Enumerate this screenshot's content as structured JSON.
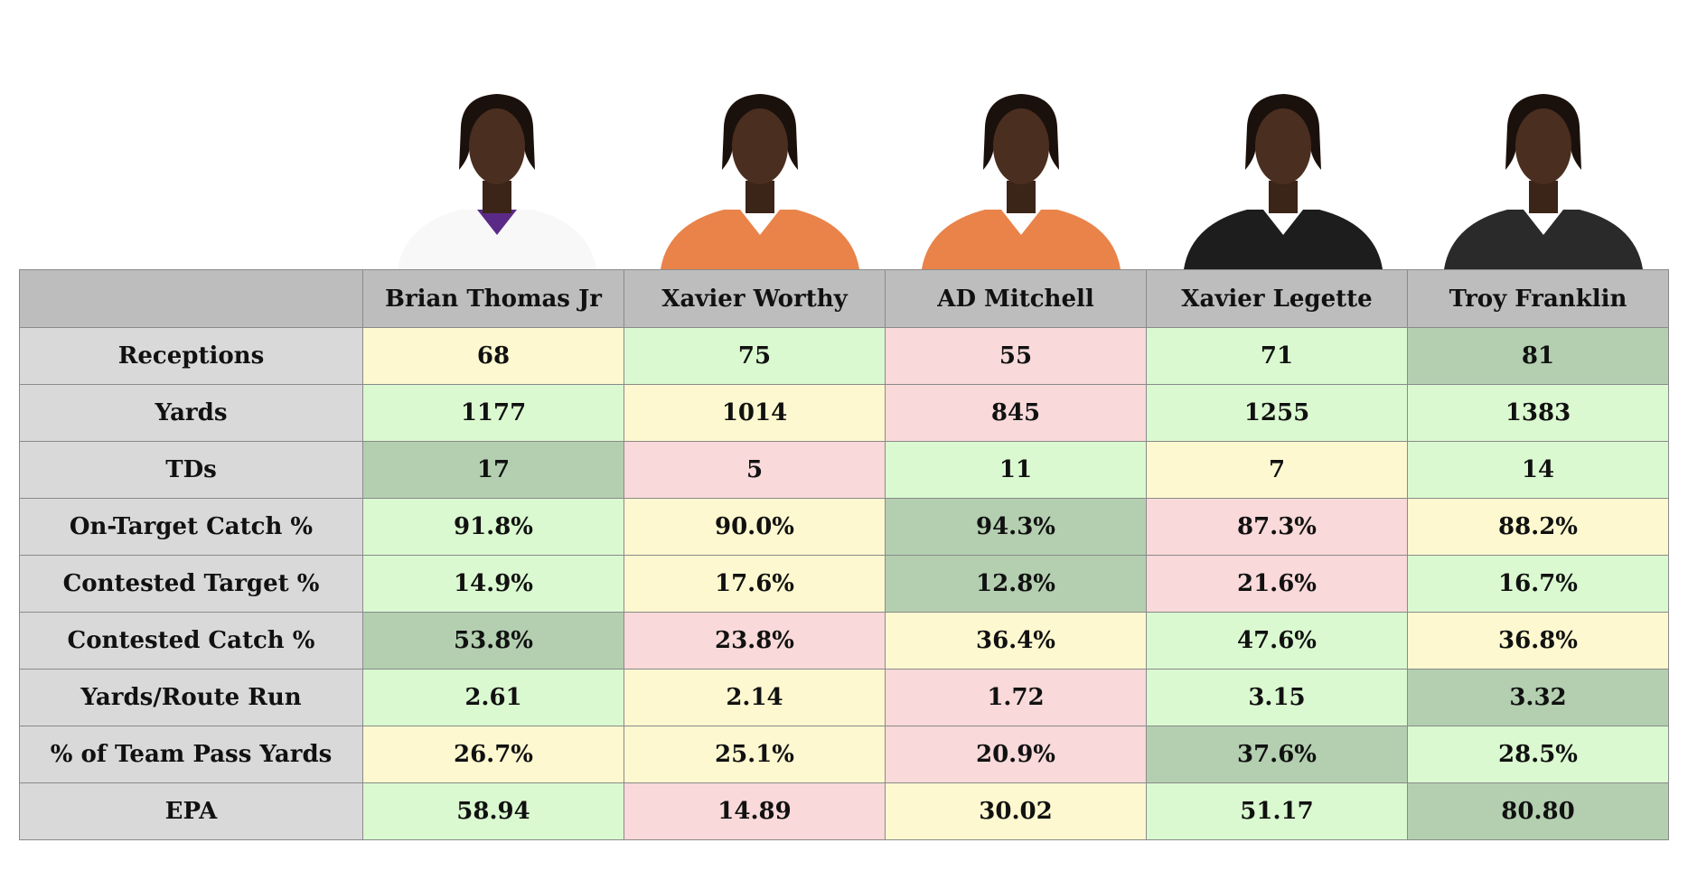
{
  "colors": {
    "header_bg": "#bdbdbd",
    "label_bg": "#d9d9d9",
    "best": "#b3cfb0",
    "good": "#daf9d0",
    "mid": "#fdf8cf",
    "low": "#f9d9d9"
  },
  "players": [
    {
      "name": "Brian Thomas Jr",
      "jersey": "#f8f8f8",
      "trim": "#5b2a86"
    },
    {
      "name": "Xavier Worthy",
      "jersey": "#e9834a",
      "trim": "#ffffff"
    },
    {
      "name": "AD Mitchell",
      "jersey": "#e9834a",
      "trim": "#ffffff"
    },
    {
      "name": "Xavier Legette",
      "jersey": "#1d1d1d",
      "trim": "#ffffff"
    },
    {
      "name": "Troy Franklin",
      "jersey": "#2a2a2a",
      "trim": "#ffffff"
    }
  ],
  "rows": [
    {
      "label": "Receptions",
      "values": [
        "68",
        "75",
        "55",
        "71",
        "81"
      ],
      "tiers": [
        "mid",
        "good",
        "low",
        "good",
        "best"
      ]
    },
    {
      "label": "Yards",
      "values": [
        "1177",
        "1014",
        "845",
        "1255",
        "1383"
      ],
      "tiers": [
        "good",
        "mid",
        "low",
        "good",
        "good"
      ]
    },
    {
      "label": "TDs",
      "values": [
        "17",
        "5",
        "11",
        "7",
        "14"
      ],
      "tiers": [
        "best",
        "low",
        "good",
        "mid",
        "good"
      ]
    },
    {
      "label": "On-Target Catch %",
      "values": [
        "91.8%",
        "90.0%",
        "94.3%",
        "87.3%",
        "88.2%"
      ],
      "tiers": [
        "good",
        "mid",
        "best",
        "low",
        "mid"
      ]
    },
    {
      "label": "Contested Target %",
      "values": [
        "14.9%",
        "17.6%",
        "12.8%",
        "21.6%",
        "16.7%"
      ],
      "tiers": [
        "good",
        "mid",
        "best",
        "low",
        "good"
      ]
    },
    {
      "label": "Contested Catch %",
      "values": [
        "53.8%",
        "23.8%",
        "36.4%",
        "47.6%",
        "36.8%"
      ],
      "tiers": [
        "best",
        "low",
        "mid",
        "good",
        "mid"
      ]
    },
    {
      "label": "Yards/Route Run",
      "values": [
        "2.61",
        "2.14",
        "1.72",
        "3.15",
        "3.32"
      ],
      "tiers": [
        "good",
        "mid",
        "low",
        "good",
        "best"
      ]
    },
    {
      "label": "% of Team Pass Yards",
      "values": [
        "26.7%",
        "25.1%",
        "20.9%",
        "37.6%",
        "28.5%"
      ],
      "tiers": [
        "mid",
        "mid",
        "low",
        "best",
        "good"
      ]
    },
    {
      "label": "EPA",
      "values": [
        "58.94",
        "14.89",
        "30.02",
        "51.17",
        "80.80"
      ],
      "tiers": [
        "good",
        "low",
        "mid",
        "good",
        "best"
      ]
    }
  ],
  "chart_data": {
    "type": "table",
    "columns": [
      "Brian Thomas Jr",
      "Xavier Worthy",
      "AD Mitchell",
      "Xavier Legette",
      "Troy Franklin"
    ],
    "rows": [
      {
        "label": "Receptions",
        "values": [
          68,
          75,
          55,
          71,
          81
        ]
      },
      {
        "label": "Yards",
        "values": [
          1177,
          1014,
          845,
          1255,
          1383
        ]
      },
      {
        "label": "TDs",
        "values": [
          17,
          5,
          11,
          7,
          14
        ]
      },
      {
        "label": "On-Target Catch %",
        "values": [
          91.8,
          90.0,
          94.3,
          87.3,
          88.2
        ]
      },
      {
        "label": "Contested Target %",
        "values": [
          14.9,
          17.6,
          12.8,
          21.6,
          16.7
        ]
      },
      {
        "label": "Contested Catch %",
        "values": [
          53.8,
          23.8,
          36.4,
          47.6,
          36.8
        ]
      },
      {
        "label": "Yards/Route Run",
        "values": [
          2.61,
          2.14,
          1.72,
          3.15,
          3.32
        ]
      },
      {
        "label": "% of Team Pass Yards",
        "values": [
          26.7,
          25.1,
          20.9,
          37.6,
          28.5
        ]
      },
      {
        "label": "EPA",
        "values": [
          58.94,
          14.89,
          30.02,
          51.17,
          80.8
        ]
      }
    ]
  }
}
